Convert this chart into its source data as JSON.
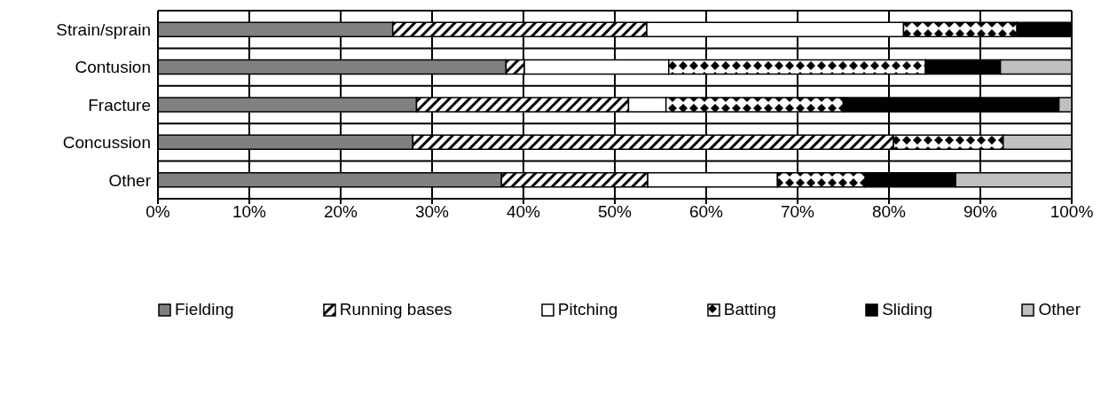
{
  "chart_data": {
    "type": "bar",
    "orientation": "horizontal",
    "stacked": true,
    "categories": [
      "Strain/sprain",
      "Contusion",
      "Fracture",
      "Concussion",
      "Other"
    ],
    "series": [
      {
        "name": "Fielding",
        "color": "#808080",
        "values": [
          25.7,
          38.1,
          28.3,
          27.9,
          37.6
        ]
      },
      {
        "name": "Running bases",
        "color": "#000000",
        "values": [
          27.8,
          2.0,
          23.2,
          52.6,
          16.0
        ]
      },
      {
        "name": "Pitching",
        "color": "#ffffff",
        "values": [
          28.1,
          15.8,
          4.1,
          0,
          14.2
        ]
      },
      {
        "name": "Batting",
        "color": "#000000",
        "values": [
          12.4,
          28.1,
          19.4,
          12.0,
          9.6
        ]
      },
      {
        "name": "Sliding",
        "color": "#000000",
        "values": [
          6.0,
          8.2,
          23.6,
          0,
          9.9
        ]
      },
      {
        "name": "Other",
        "color": "#c0c0c0",
        "values": [
          0,
          7.8,
          1.4,
          7.5,
          12.7
        ]
      }
    ],
    "xlim": [
      0,
      100
    ],
    "xticks": [
      {
        "value": 0,
        "label": "0%"
      },
      {
        "value": 10,
        "label": "10%"
      },
      {
        "value": 20,
        "label": "20%"
      },
      {
        "value": 30,
        "label": "30%"
      },
      {
        "value": 40,
        "label": "40%"
      },
      {
        "value": 50,
        "label": "50%"
      },
      {
        "value": 60,
        "label": "60%"
      },
      {
        "value": 70,
        "label": "70%"
      },
      {
        "value": 80,
        "label": "80%"
      },
      {
        "value": 90,
        "label": "90%"
      },
      {
        "value": 100,
        "label": "100%"
      }
    ],
    "grid": true,
    "legend": "bottom"
  }
}
